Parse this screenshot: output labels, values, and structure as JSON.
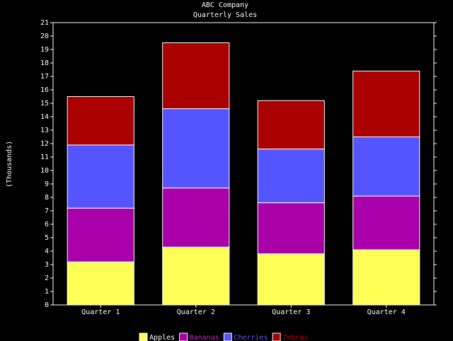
{
  "chart_data": {
    "type": "bar",
    "stacked": true,
    "title": "ABC Company",
    "subtitle": "Quarterly Sales",
    "ylabel": "(Thousands)",
    "ylim": [
      0,
      21
    ],
    "ytick_step": 1,
    "categories": [
      "Quarter 1",
      "Quarter 2",
      "Quarter 3",
      "Quarter 4"
    ],
    "series": [
      {
        "name": "Apples",
        "color": "#ffff55",
        "legend_text_color": "#ffffff",
        "values": [
          3.2,
          4.3,
          3.8,
          4.1
        ]
      },
      {
        "name": "Bananas",
        "color": "#aa00aa",
        "legend_text_color": "#cc22cc",
        "values": [
          4.0,
          4.4,
          3.8,
          4.0
        ]
      },
      {
        "name": "Cherries",
        "color": "#5555ff",
        "legend_text_color": "#5555ff",
        "values": [
          4.7,
          5.9,
          4.0,
          4.4
        ]
      },
      {
        "name": "Zebras",
        "color": "#aa0000",
        "legend_text_color": "#cc0000",
        "values": [
          3.6,
          4.9,
          3.6,
          4.9
        ]
      }
    ],
    "legend_position": "bottom-center",
    "background": "#000000",
    "axis_color": "#ffffff"
  }
}
